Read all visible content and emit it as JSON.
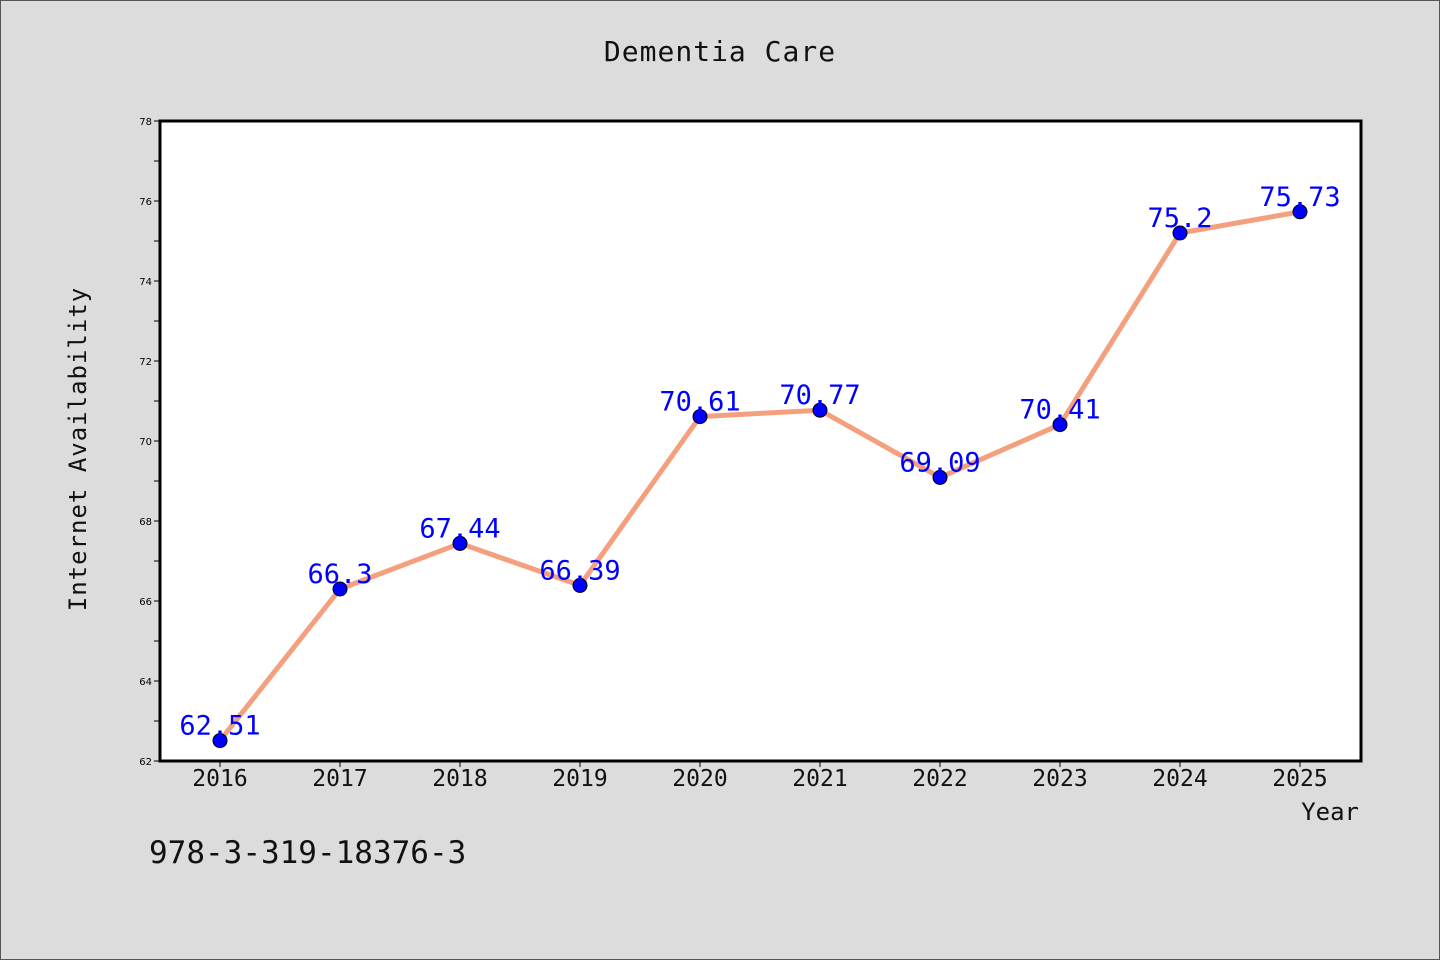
{
  "chart_data": {
    "type": "line",
    "title": "Dementia Care",
    "xlabel": "Year",
    "ylabel": "Internet Availability",
    "categories": [
      "2016",
      "2017",
      "2018",
      "2019",
      "2020",
      "2021",
      "2022",
      "2023",
      "2024",
      "2025"
    ],
    "series": [
      {
        "values": [
          62.51,
          66.3,
          67.44,
          66.39,
          70.61,
          70.77,
          69.09,
          70.41,
          75.2,
          75.73
        ],
        "line_color": "#f4a07e",
        "marker_color": "#0000ff"
      }
    ],
    "data_labels": [
      "62.51",
      "66.3",
      "67.44",
      "66.39",
      "70.61",
      "70.77",
      "69.09",
      "70.41",
      "75.2",
      "75.73"
    ],
    "ylim": [
      62,
      78
    ],
    "yticks": [
      62,
      64,
      66,
      68,
      70,
      72,
      74,
      76,
      78
    ],
    "grid": false,
    "legend": "none",
    "label_color": "#0000ff"
  },
  "footer_text": "978-3-319-18376-3"
}
